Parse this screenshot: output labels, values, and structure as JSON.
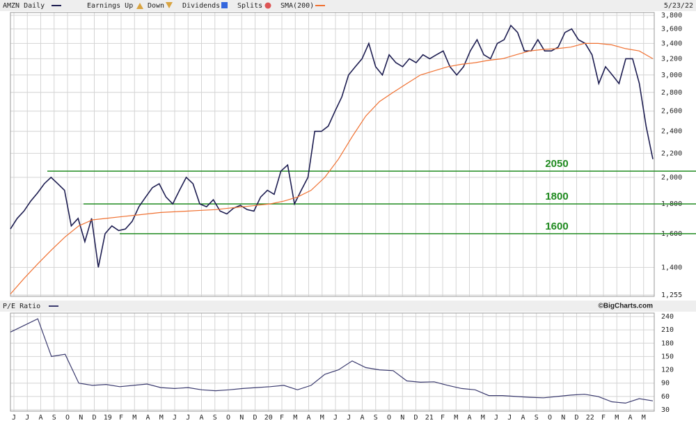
{
  "chart_data": [
    {
      "type": "line",
      "title": "AMZN Daily",
      "date": "5/23/22",
      "log_scale": true,
      "grid": true,
      "legend_items": [
        "Earnings Up",
        "Down",
        "Dividends",
        "Splits"
      ],
      "ylim": [
        1255,
        3800
      ],
      "yticks": [
        {
          "value": 1255,
          "label": "1,255"
        },
        {
          "value": 1400,
          "label": "1,400"
        },
        {
          "value": 1600,
          "label": "1,600"
        },
        {
          "value": 1800,
          "label": "1,800"
        },
        {
          "value": 2000,
          "label": "2,000"
        },
        {
          "value": 2200,
          "label": "2,200"
        },
        {
          "value": 2400,
          "label": "2,400"
        },
        {
          "value": 2600,
          "label": "2,600"
        },
        {
          "value": 2800,
          "label": "2,800"
        },
        {
          "value": 3000,
          "label": "3,000"
        },
        {
          "value": 3200,
          "label": "3,200"
        },
        {
          "value": 3400,
          "label": "3,400"
        },
        {
          "value": 3600,
          "label": "3,600"
        },
        {
          "value": 3800,
          "label": "3,800"
        }
      ],
      "levels": [
        2050,
        1800,
        1600
      ],
      "level_color": "#1f8a1f",
      "series": [
        {
          "name": "AMZN Daily",
          "color": "#1c1c50",
          "values": [
            1630,
            1700,
            1750,
            1820,
            1880,
            1950,
            2000,
            1950,
            1900,
            1650,
            1700,
            1550,
            1700,
            1400,
            1600,
            1650,
            1620,
            1630,
            1680,
            1780,
            1850,
            1920,
            1950,
            1850,
            1800,
            1900,
            2000,
            1950,
            1800,
            1780,
            1830,
            1750,
            1730,
            1770,
            1790,
            1760,
            1750,
            1850,
            1900,
            1870,
            2050,
            2100,
            1800,
            1900,
            2000,
            2400,
            2400,
            2450,
            2600,
            2750,
            3000,
            3100,
            3200,
            3400,
            3100,
            3000,
            3250,
            3150,
            3100,
            3200,
            3150,
            3250,
            3200,
            3250,
            3300,
            3100,
            3000,
            3100,
            3300,
            3450,
            3250,
            3200,
            3400,
            3450,
            3650,
            3550,
            3300,
            3300,
            3450,
            3300,
            3300,
            3350,
            3550,
            3600,
            3450,
            3400,
            3250,
            2900,
            3100,
            3000,
            2900,
            3200,
            3200,
            2900,
            2450,
            2150
          ]
        },
        {
          "name": "SMA(200)",
          "color": "#f07030",
          "values": [
            1260,
            1340,
            1420,
            1500,
            1580,
            1650,
            1690,
            1700,
            1710,
            1720,
            1730,
            1740,
            1745,
            1750,
            1755,
            1760,
            1770,
            1780,
            1790,
            1800,
            1820,
            1850,
            1900,
            2000,
            2150,
            2350,
            2550,
            2700,
            2800,
            2900,
            3000,
            3050,
            3100,
            3130,
            3150,
            3180,
            3200,
            3250,
            3300,
            3320,
            3330,
            3350,
            3400,
            3400,
            3380,
            3330,
            3300,
            3200
          ]
        }
      ]
    },
    {
      "type": "line",
      "title": "P/E Ratio",
      "source": "©BigCharts.com",
      "grid": true,
      "categories": [
        "J",
        "J",
        "A",
        "S",
        "O",
        "N",
        "D",
        "19",
        "F",
        "M",
        "A",
        "M",
        "J",
        "J",
        "A",
        "S",
        "O",
        "N",
        "D",
        "20",
        "F",
        "M",
        "A",
        "M",
        "J",
        "J",
        "A",
        "S",
        "O",
        "N",
        "D",
        "21",
        "F",
        "M",
        "A",
        "M",
        "J",
        "J",
        "A",
        "S",
        "O",
        "N",
        "D",
        "22",
        "F",
        "M",
        "A",
        "M"
      ],
      "ylim": [
        30,
        240
      ],
      "yticks": [
        30,
        60,
        90,
        120,
        150,
        180,
        210,
        240
      ],
      "series": [
        {
          "name": "P/E Ratio",
          "color": "#3a3a6e",
          "values": [
            205,
            220,
            235,
            150,
            155,
            90,
            85,
            87,
            82,
            85,
            88,
            80,
            78,
            80,
            75,
            73,
            75,
            78,
            80,
            82,
            85,
            75,
            85,
            110,
            120,
            140,
            125,
            120,
            118,
            95,
            92,
            93,
            85,
            78,
            75,
            62,
            62,
            60,
            58,
            57,
            60,
            63,
            65,
            60,
            48,
            45,
            55,
            50
          ]
        }
      ]
    }
  ]
}
